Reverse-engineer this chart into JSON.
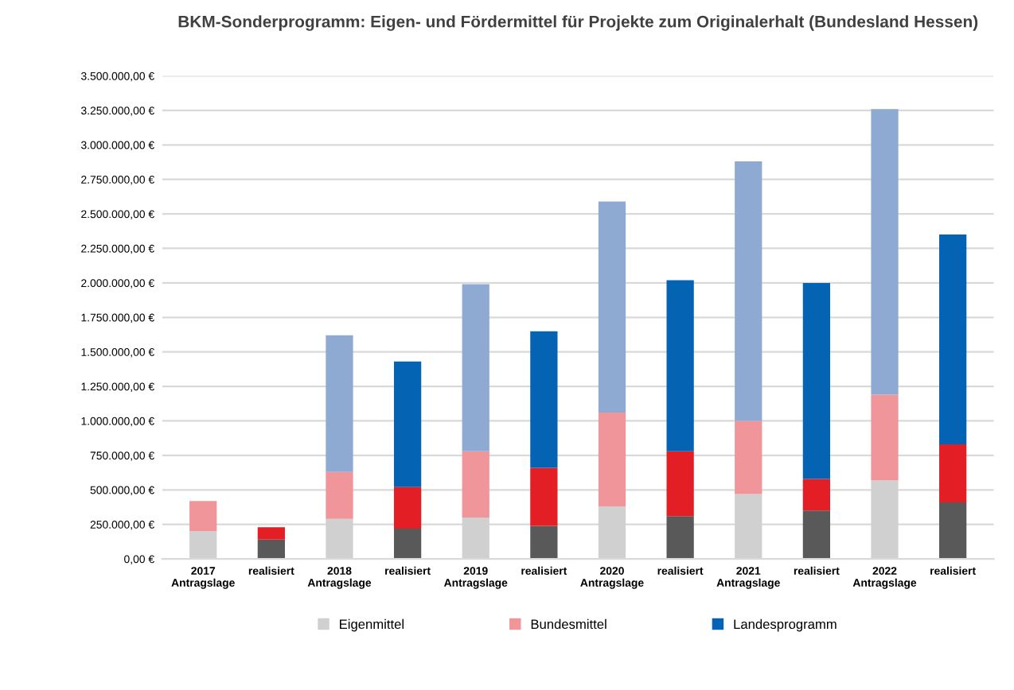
{
  "chart_data": {
    "type": "bar",
    "stacked": true,
    "title": "BKM-Sonderprogramm: Eigen- und Fördermittel für Projekte zum Originalerhalt (Bundesland Hessen)",
    "categories": [
      "2017\nAntragslage",
      "realisiert",
      "2018\nAntragslage",
      "realisiert",
      "2019\nAntragslage",
      "realisiert",
      "2020\nAntragslage",
      "realisiert",
      "2021\nAntragslage",
      "realisiert",
      "2022\nAntragslage",
      "realisiert"
    ],
    "series": [
      {
        "name": "Eigenmittel",
        "color": "#d0d0d0",
        "values": [
          200000,
          140000,
          290000,
          220000,
          300000,
          240000,
          380000,
          310000,
          470000,
          350000,
          570000,
          410000
        ],
        "colors": [
          "#d0d0d0",
          "#595959",
          "#d0d0d0",
          "#595959",
          "#d0d0d0",
          "#595959",
          "#d0d0d0",
          "#595959",
          "#d0d0d0",
          "#595959",
          "#d0d0d0",
          "#595959"
        ]
      },
      {
        "name": "Bundesmittel",
        "color": "#f0959a",
        "values": [
          220000,
          90000,
          340000,
          300000,
          480000,
          420000,
          680000,
          470000,
          530000,
          230000,
          620000,
          420000
        ],
        "colors": [
          "#f0959a",
          "#e31e24",
          "#f0959a",
          "#e31e24",
          "#f0959a",
          "#e31e24",
          "#f0959a",
          "#e31e24",
          "#f0959a",
          "#e31e24",
          "#f0959a",
          "#e31e24"
        ]
      },
      {
        "name": "Landesprogramm",
        "color": "#0563b4",
        "values": [
          0,
          0,
          990000,
          910000,
          1210000,
          990000,
          1530000,
          1240000,
          1880000,
          1420000,
          2070000,
          1520000
        ],
        "colors": [
          "#8eaad2",
          "#0563b4",
          "#8eaad2",
          "#0563b4",
          "#8eaad2",
          "#0563b4",
          "#8eaad2",
          "#0563b4",
          "#8eaad2",
          "#0563b4",
          "#8eaad2",
          "#0563b4"
        ]
      }
    ],
    "ylim": [
      0,
      3500000
    ],
    "yticks": [
      {
        "value": 0,
        "label": "0,00 €"
      },
      {
        "value": 250000,
        "label": "250.000,00 €"
      },
      {
        "value": 500000,
        "label": "500.000,00 €"
      },
      {
        "value": 750000,
        "label": "750.000,00 €"
      },
      {
        "value": 1000000,
        "label": "1.000.000,00 €"
      },
      {
        "value": 1250000,
        "label": "1.250.000,00 €"
      },
      {
        "value": 1500000,
        "label": "1.500.000,00 €"
      },
      {
        "value": 1750000,
        "label": "1.750.000,00 €"
      },
      {
        "value": 2000000,
        "label": "2.000.000,00 €"
      },
      {
        "value": 2250000,
        "label": "2.250.000,00 €"
      },
      {
        "value": 2500000,
        "label": "2.500.000,00 €"
      },
      {
        "value": 2750000,
        "label": "2.750.000,00 €"
      },
      {
        "value": 3000000,
        "label": "3.000.000,00 €"
      },
      {
        "value": 3250000,
        "label": "3.250.000,00 €"
      },
      {
        "value": 3500000,
        "label": "3.500.000,00 €"
      }
    ],
    "grid": "y",
    "legend": "bottom"
  }
}
